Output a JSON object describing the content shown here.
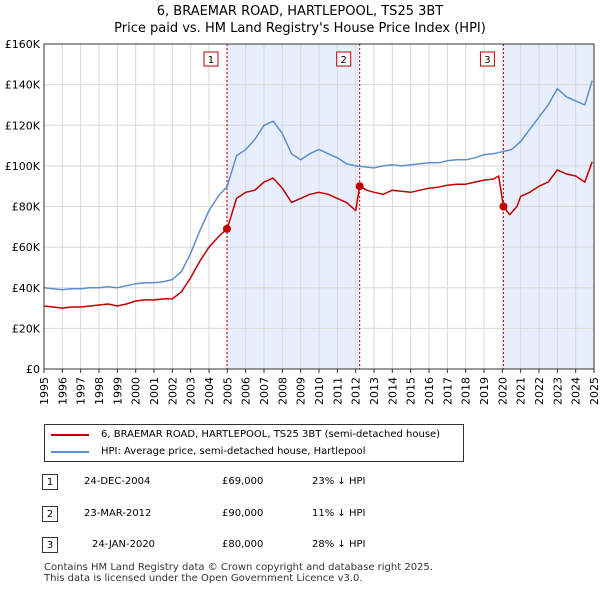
{
  "title_line1": "6, BRAEMAR ROAD, HARTLEPOOL, TS25 3BT",
  "title_line2": "Price paid vs. HM Land Registry's House Price Index (HPI)",
  "legend": {
    "red_label": "6, BRAEMAR ROAD, HARTLEPOOL, TS25 3BT (semi-detached house)",
    "blue_label": "HPI: Average price, semi-detached house, Hartlepool"
  },
  "colors": {
    "red": "#c00000",
    "blue": "#5b8fd0",
    "band": "#e8eefb",
    "grid": "#d8d8d8"
  },
  "transactions": [
    {
      "num": "1",
      "date": "24-DEC-2004",
      "price": "£69,000",
      "pct": "23% ↓ HPI"
    },
    {
      "num": "2",
      "date": "23-MAR-2012",
      "price": "£90,000",
      "pct": "11% ↓ HPI"
    },
    {
      "num": "3",
      "date": "24-JAN-2020",
      "price": "£80,000",
      "pct": "28% ↓ HPI"
    }
  ],
  "footer_line1": "Contains HM Land Registry data © Crown copyright and database right 2025.",
  "footer_line2": "This data is licensed under the Open Government Licence v3.0.",
  "chart_data": {
    "type": "line",
    "title": "6, BRAEMAR ROAD, HARTLEPOOL, TS25 3BT",
    "subtitle": "Price paid vs. HM Land Registry's House Price Index (HPI)",
    "xlim": [
      1995,
      2025
    ],
    "ylim": [
      0,
      160000
    ],
    "y_ticks": [
      0,
      20000,
      40000,
      60000,
      80000,
      100000,
      120000,
      140000,
      160000
    ],
    "y_tick_labels": [
      "£0",
      "£20K",
      "£40K",
      "£60K",
      "£80K",
      "£100K",
      "£120K",
      "£140K",
      "£160K"
    ],
    "x_ticks": [
      1995,
      1996,
      1997,
      1998,
      1999,
      2000,
      2001,
      2002,
      2003,
      2004,
      2005,
      2006,
      2007,
      2008,
      2009,
      2010,
      2011,
      2012,
      2013,
      2014,
      2015,
      2016,
      2017,
      2018,
      2019,
      2020,
      2021,
      2022,
      2023,
      2024,
      2025
    ],
    "grid": true,
    "legend_position": "bottom",
    "series": [
      {
        "name": "6, BRAEMAR ROAD, HARTLEPOOL, TS25 3BT (semi-detached house)",
        "color": "#c00000",
        "x": [
          1995,
          1995.5,
          1996,
          1996.5,
          1997,
          1997.5,
          1998,
          1998.5,
          1999,
          1999.5,
          2000,
          2000.5,
          2001,
          2001.5,
          2002,
          2002.5,
          2003,
          2003.5,
          2004,
          2004.5,
          2004.98,
          2005.2,
          2005.5,
          2006,
          2006.5,
          2007,
          2007.5,
          2008,
          2008.5,
          2009,
          2009.5,
          2010,
          2010.5,
          2011,
          2011.5,
          2012,
          2012.22,
          2012.6,
          2013,
          2013.5,
          2014,
          2014.5,
          2015,
          2015.5,
          2016,
          2016.5,
          2017,
          2017.5,
          2018,
          2018.5,
          2019,
          2019.5,
          2019.8,
          2020.06,
          2020.4,
          2020.8,
          2021,
          2021.5,
          2022,
          2022.5,
          2023,
          2023.5,
          2024,
          2024.5,
          2024.9
        ],
        "y": [
          31000,
          30500,
          30000,
          30500,
          30500,
          31000,
          31500,
          32000,
          31000,
          32000,
          33500,
          34000,
          34000,
          34500,
          34500,
          38000,
          45000,
          53000,
          60000,
          65000,
          69000,
          75000,
          84000,
          87000,
          88000,
          92000,
          94000,
          89000,
          82000,
          84000,
          86000,
          87000,
          86000,
          84000,
          82000,
          78000,
          90000,
          88000,
          87000,
          86000,
          88000,
          87500,
          87000,
          88000,
          89000,
          89500,
          90500,
          91000,
          91000,
          92000,
          93000,
          93500,
          95000,
          80000,
          76000,
          80000,
          85000,
          87000,
          90000,
          92000,
          98000,
          96000,
          95000,
          92000,
          102000
        ]
      },
      {
        "name": "HPI: Average price, semi-detached house, Hartlepool",
        "color": "#5b8fd0",
        "x": [
          1995,
          1995.5,
          1996,
          1996.5,
          1997,
          1997.5,
          1998,
          1998.5,
          1999,
          1999.5,
          2000,
          2000.5,
          2001,
          2001.5,
          2002,
          2002.5,
          2003,
          2003.5,
          2004,
          2004.5,
          2005,
          2005.5,
          2006,
          2006.5,
          2007,
          2007.5,
          2008,
          2008.5,
          2009,
          2009.5,
          2010,
          2010.5,
          2011,
          2011.5,
          2012,
          2012.5,
          2013,
          2013.5,
          2014,
          2014.5,
          2015,
          2015.5,
          2016,
          2016.5,
          2017,
          2017.5,
          2018,
          2018.5,
          2019,
          2019.5,
          2020,
          2020.5,
          2021,
          2021.5,
          2022,
          2022.5,
          2023,
          2023.5,
          2024,
          2024.5,
          2024.9
        ],
        "y": [
          40000,
          39500,
          39000,
          39500,
          39500,
          40000,
          40000,
          40500,
          40000,
          41000,
          42000,
          42500,
          42500,
          43000,
          44000,
          48000,
          57000,
          68000,
          78000,
          85000,
          90000,
          105000,
          108000,
          113000,
          120000,
          122000,
          116000,
          106000,
          103000,
          106000,
          108000,
          106000,
          104000,
          101000,
          100000,
          99500,
          99000,
          100000,
          100500,
          100000,
          100500,
          101000,
          101500,
          101500,
          102500,
          103000,
          103000,
          104000,
          105500,
          106000,
          107000,
          108000,
          112000,
          118000,
          124000,
          130000,
          138000,
          134000,
          132000,
          130000,
          142000
        ]
      }
    ],
    "markers": [
      {
        "label": "1",
        "x": 2004.98,
        "y": 69000
      },
      {
        "label": "2",
        "x": 2012.22,
        "y": 90000
      },
      {
        "label": "3",
        "x": 2020.06,
        "y": 80000
      }
    ],
    "shaded_bands": [
      [
        2004.98,
        2012.22
      ],
      [
        2020.06,
        2025
      ]
    ]
  }
}
